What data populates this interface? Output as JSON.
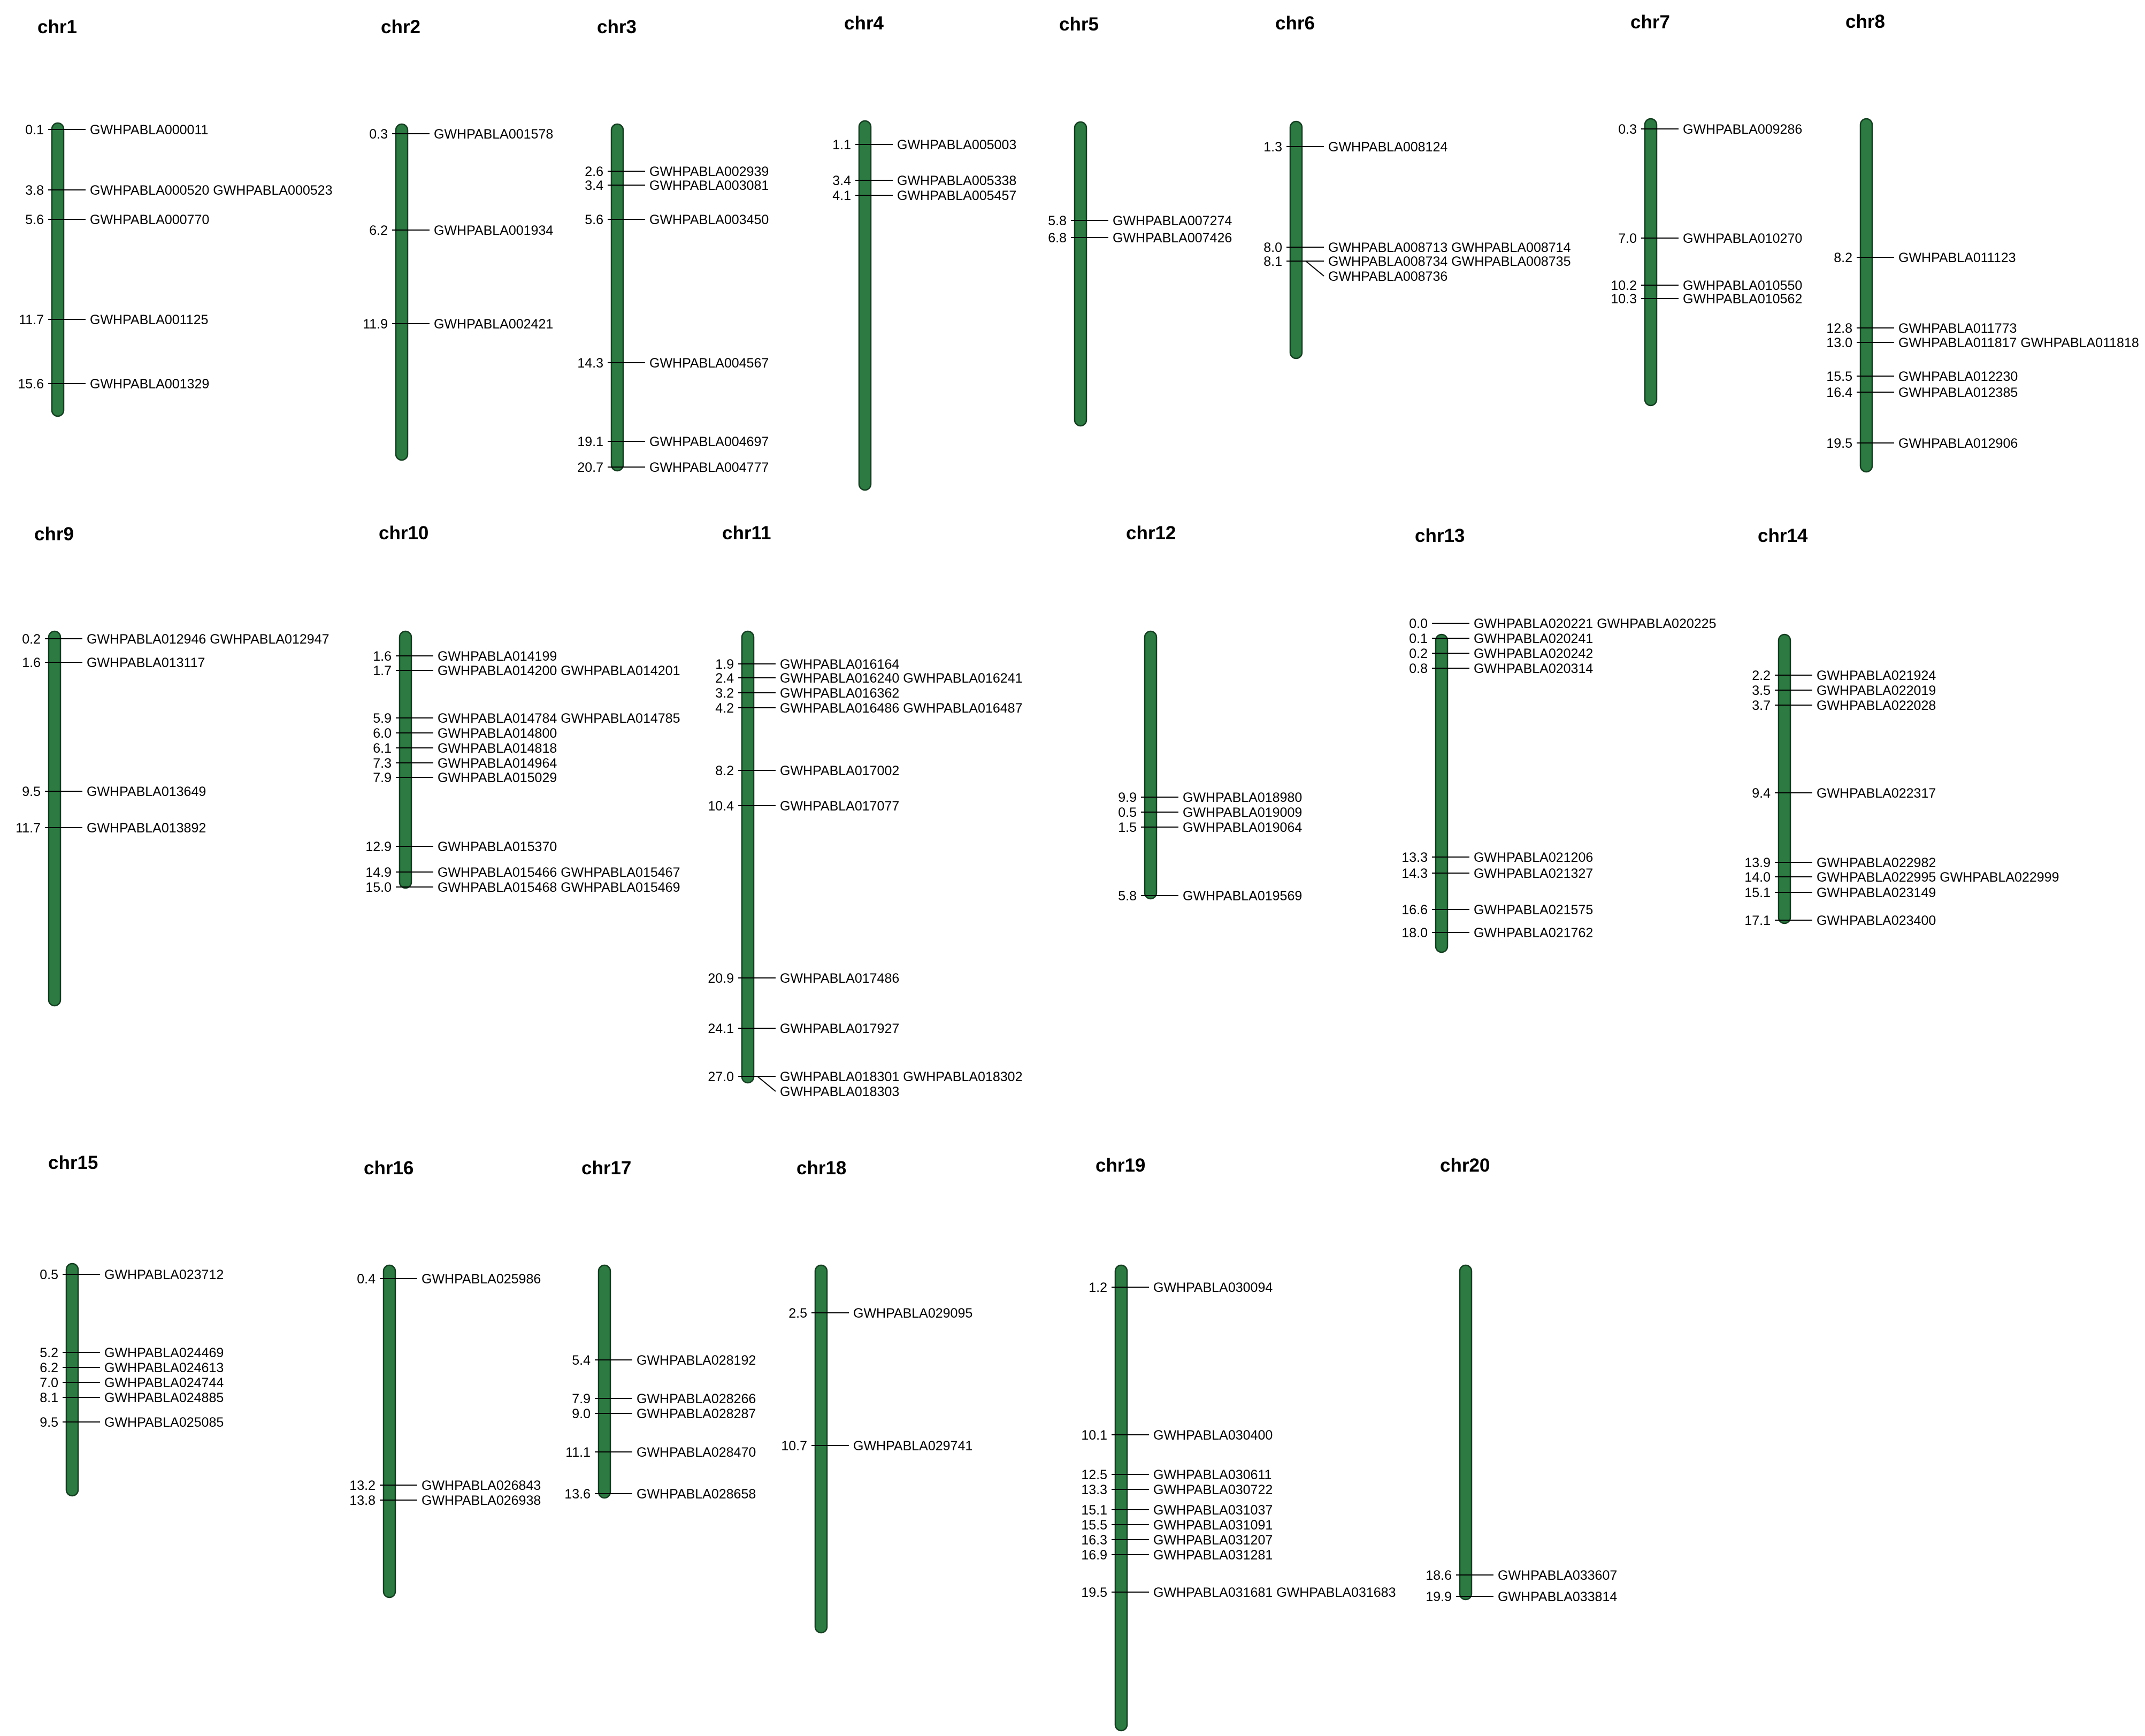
{
  "colors": {
    "chromosome_fill": "#2d7a43",
    "chromosome_stroke": "#143d20",
    "line": "#000000",
    "text": "#000000"
  },
  "chromosomes": [
    {
      "name": "chr1",
      "markers": [
        {
          "pos": "0.1",
          "genes": [
            "GWHPABLA000011"
          ]
        },
        {
          "pos": "3.8",
          "genes": [
            "GWHPABLA000520 GWHPABLA000523"
          ]
        },
        {
          "pos": "5.6",
          "genes": [
            "GWHPABLA000770"
          ]
        },
        {
          "pos": "11.7",
          "genes": [
            "GWHPABLA001125"
          ]
        },
        {
          "pos": "15.6",
          "genes": [
            "GWHPABLA001329"
          ]
        }
      ]
    },
    {
      "name": "chr2",
      "markers": [
        {
          "pos": "0.3",
          "genes": [
            "GWHPABLA001578"
          ]
        },
        {
          "pos": "6.2",
          "genes": [
            "GWHPABLA001934"
          ]
        },
        {
          "pos": "11.9",
          "genes": [
            "GWHPABLA002421"
          ]
        }
      ]
    },
    {
      "name": "chr3",
      "markers": [
        {
          "pos": "2.6",
          "genes": [
            "GWHPABLA002939"
          ]
        },
        {
          "pos": "3.4",
          "genes": [
            "GWHPABLA003081"
          ]
        },
        {
          "pos": "5.6",
          "genes": [
            "GWHPABLA003450"
          ]
        },
        {
          "pos": "14.3",
          "genes": [
            "GWHPABLA004567"
          ]
        },
        {
          "pos": "19.1",
          "genes": [
            "GWHPABLA004697"
          ]
        },
        {
          "pos": "20.7",
          "genes": [
            "GWHPABLA004777"
          ]
        }
      ]
    },
    {
      "name": "chr4",
      "markers": [
        {
          "pos": "1.1",
          "genes": [
            "GWHPABLA005003"
          ]
        },
        {
          "pos": "3.4",
          "genes": [
            "GWHPABLA005338"
          ]
        },
        {
          "pos": "4.1",
          "genes": [
            "GWHPABLA005457"
          ]
        }
      ]
    },
    {
      "name": "chr5",
      "markers": [
        {
          "pos": "5.8",
          "genes": [
            "GWHPABLA007274"
          ]
        },
        {
          "pos": "6.8",
          "genes": [
            "GWHPABLA007426"
          ]
        }
      ]
    },
    {
      "name": "chr6",
      "markers": [
        {
          "pos": "1.3",
          "genes": [
            "GWHPABLA008124"
          ]
        },
        {
          "pos": "8.0",
          "genes": [
            "GWHPABLA008713 GWHPABLA008714"
          ]
        },
        {
          "pos": "8.1",
          "genes": [
            "GWHPABLA008734 GWHPABLA008735",
            "GWHPABLA008736"
          ]
        }
      ]
    },
    {
      "name": "chr7",
      "markers": [
        {
          "pos": "0.3",
          "genes": [
            "GWHPABLA009286"
          ]
        },
        {
          "pos": "7.0",
          "genes": [
            "GWHPABLA010270"
          ]
        },
        {
          "pos": "10.2",
          "genes": [
            "GWHPABLA010550"
          ]
        },
        {
          "pos": "10.3",
          "genes": [
            "GWHPABLA010562"
          ]
        }
      ]
    },
    {
      "name": "chr8",
      "markers": [
        {
          "pos": "8.2",
          "genes": [
            "GWHPABLA011123"
          ]
        },
        {
          "pos": "12.8",
          "genes": [
            "GWHPABLA011773"
          ]
        },
        {
          "pos": "13.0",
          "genes": [
            "GWHPABLA011817 GWHPABLA011818"
          ]
        },
        {
          "pos": "15.5",
          "genes": [
            "GWHPABLA012230"
          ]
        },
        {
          "pos": "16.4",
          "genes": [
            "GWHPABLA012385"
          ]
        },
        {
          "pos": "19.5",
          "genes": [
            "GWHPABLA012906"
          ]
        }
      ]
    },
    {
      "name": "chr9",
      "markers": [
        {
          "pos": "0.2",
          "genes": [
            "GWHPABLA012946 GWHPABLA012947"
          ]
        },
        {
          "pos": "1.6",
          "genes": [
            "GWHPABLA013117"
          ]
        },
        {
          "pos": "9.5",
          "genes": [
            "GWHPABLA013649"
          ]
        },
        {
          "pos": "11.7",
          "genes": [
            "GWHPABLA013892"
          ]
        }
      ]
    },
    {
      "name": "chr10",
      "markers": [
        {
          "pos": "1.6",
          "genes": [
            "GWHPABLA014199"
          ]
        },
        {
          "pos": "1.7",
          "genes": [
            "GWHPABLA014200 GWHPABLA014201"
          ]
        },
        {
          "pos": "5.9",
          "genes": [
            "GWHPABLA014784 GWHPABLA014785"
          ]
        },
        {
          "pos": "6.0",
          "genes": [
            "GWHPABLA014800"
          ]
        },
        {
          "pos": "6.1",
          "genes": [
            "GWHPABLA014818"
          ]
        },
        {
          "pos": "7.3",
          "genes": [
            "GWHPABLA014964"
          ]
        },
        {
          "pos": "7.9",
          "genes": [
            "GWHPABLA015029"
          ]
        },
        {
          "pos": "12.9",
          "genes": [
            "GWHPABLA015370"
          ]
        },
        {
          "pos": "14.9",
          "genes": [
            "GWHPABLA015466 GWHPABLA015467"
          ]
        },
        {
          "pos": "15.0",
          "genes": [
            "GWHPABLA015468 GWHPABLA015469"
          ]
        }
      ]
    },
    {
      "name": "chr11",
      "markers": [
        {
          "pos": "1.9",
          "genes": [
            "GWHPABLA016164"
          ]
        },
        {
          "pos": "2.4",
          "genes": [
            "GWHPABLA016240 GWHPABLA016241"
          ]
        },
        {
          "pos": "3.2",
          "genes": [
            "GWHPABLA016362"
          ]
        },
        {
          "pos": "4.2",
          "genes": [
            "GWHPABLA016486 GWHPABLA016487"
          ]
        },
        {
          "pos": "8.2",
          "genes": [
            "GWHPABLA017002"
          ]
        },
        {
          "pos": "10.4",
          "genes": [
            "GWHPABLA017077"
          ]
        },
        {
          "pos": "20.9",
          "genes": [
            "GWHPABLA017486"
          ]
        },
        {
          "pos": "24.1",
          "genes": [
            "GWHPABLA017927"
          ]
        },
        {
          "pos": "27.0",
          "genes": [
            "GWHPABLA018301 GWHPABLA018302",
            "GWHPABLA018303"
          ]
        }
      ]
    },
    {
      "name": "chr12",
      "markers": [
        {
          "pos": "9.9",
          "genes": [
            "GWHPABLA018980"
          ]
        },
        {
          "pos": "0.5",
          "genes": [
            "GWHPABLA019009"
          ]
        },
        {
          "pos": "1.5",
          "genes": [
            "GWHPABLA019064"
          ]
        },
        {
          "pos": "5.8",
          "genes": [
            "GWHPABLA019569"
          ]
        }
      ]
    },
    {
      "name": "chr13",
      "markers": [
        {
          "pos": "0.0",
          "genes": [
            "GWHPABLA020221 GWHPABLA020225"
          ]
        },
        {
          "pos": "0.1",
          "genes": [
            "GWHPABLA020241"
          ]
        },
        {
          "pos": "0.2",
          "genes": [
            "GWHPABLA020242"
          ]
        },
        {
          "pos": "0.8",
          "genes": [
            "GWHPABLA020314"
          ]
        },
        {
          "pos": "13.3",
          "genes": [
            "GWHPABLA021206"
          ]
        },
        {
          "pos": "14.3",
          "genes": [
            "GWHPABLA021327"
          ]
        },
        {
          "pos": "16.6",
          "genes": [
            "GWHPABLA021575"
          ]
        },
        {
          "pos": "18.0",
          "genes": [
            "GWHPABLA021762"
          ]
        }
      ]
    },
    {
      "name": "chr14",
      "markers": [
        {
          "pos": "2.2",
          "genes": [
            "GWHPABLA021924"
          ]
        },
        {
          "pos": "3.5",
          "genes": [
            "GWHPABLA022019"
          ]
        },
        {
          "pos": "3.7",
          "genes": [
            "GWHPABLA022028"
          ]
        },
        {
          "pos": "9.4",
          "genes": [
            "GWHPABLA022317"
          ]
        },
        {
          "pos": "13.9",
          "genes": [
            "GWHPABLA022982"
          ]
        },
        {
          "pos": "14.0",
          "genes": [
            "GWHPABLA022995 GWHPABLA022999"
          ]
        },
        {
          "pos": "15.1",
          "genes": [
            "GWHPABLA023149"
          ]
        },
        {
          "pos": "17.1",
          "genes": [
            "GWHPABLA023400"
          ]
        }
      ]
    },
    {
      "name": "chr15",
      "markers": [
        {
          "pos": "0.5",
          "genes": [
            "GWHPABLA023712"
          ]
        },
        {
          "pos": "5.2",
          "genes": [
            "GWHPABLA024469"
          ]
        },
        {
          "pos": "6.2",
          "genes": [
            "GWHPABLA024613"
          ]
        },
        {
          "pos": "7.0",
          "genes": [
            "GWHPABLA024744"
          ]
        },
        {
          "pos": "8.1",
          "genes": [
            "GWHPABLA024885"
          ]
        },
        {
          "pos": "9.5",
          "genes": [
            "GWHPABLA025085"
          ]
        }
      ]
    },
    {
      "name": "chr16",
      "markers": [
        {
          "pos": "0.4",
          "genes": [
            "GWHPABLA025986"
          ]
        },
        {
          "pos": "13.2",
          "genes": [
            "GWHPABLA026843"
          ]
        },
        {
          "pos": "13.8",
          "genes": [
            "GWHPABLA026938"
          ]
        }
      ]
    },
    {
      "name": "chr17",
      "markers": [
        {
          "pos": "5.4",
          "genes": [
            "GWHPABLA028192"
          ]
        },
        {
          "pos": "7.9",
          "genes": [
            "GWHPABLA028266"
          ]
        },
        {
          "pos": "9.0",
          "genes": [
            "GWHPABLA028287"
          ]
        },
        {
          "pos": "11.1",
          "genes": [
            "GWHPABLA028470"
          ]
        },
        {
          "pos": "13.6",
          "genes": [
            "GWHPABLA028658"
          ]
        }
      ]
    },
    {
      "name": "chr18",
      "markers": [
        {
          "pos": "2.5",
          "genes": [
            "GWHPABLA029095"
          ]
        },
        {
          "pos": "10.7",
          "genes": [
            "GWHPABLA029741"
          ]
        }
      ]
    },
    {
      "name": "chr19",
      "markers": [
        {
          "pos": "1.2",
          "genes": [
            "GWHPABLA030094"
          ]
        },
        {
          "pos": "10.1",
          "genes": [
            "GWHPABLA030400"
          ]
        },
        {
          "pos": "12.5",
          "genes": [
            "GWHPABLA030611"
          ]
        },
        {
          "pos": "13.3",
          "genes": [
            "GWHPABLA030722"
          ]
        },
        {
          "pos": "15.1",
          "genes": [
            "GWHPABLA031037"
          ]
        },
        {
          "pos": "15.5",
          "genes": [
            "GWHPABLA031091"
          ]
        },
        {
          "pos": "16.3",
          "genes": [
            "GWHPABLA031207"
          ]
        },
        {
          "pos": "16.9",
          "genes": [
            "GWHPABLA031281"
          ]
        },
        {
          "pos": "19.5",
          "genes": [
            "GWHPABLA031681 GWHPABLA031683"
          ]
        }
      ]
    },
    {
      "name": "chr20",
      "markers": [
        {
          "pos": "18.6",
          "genes": [
            "GWHPABLA033607"
          ]
        },
        {
          "pos": "19.9",
          "genes": [
            "GWHPABLA033814"
          ]
        }
      ]
    }
  ]
}
